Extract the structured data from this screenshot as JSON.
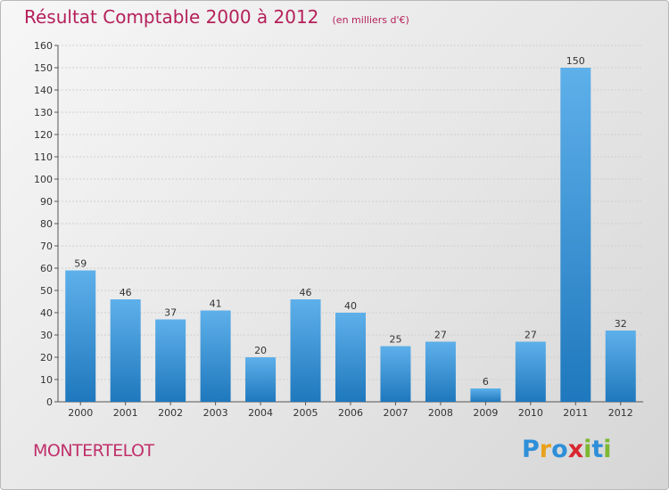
{
  "header": {
    "title": "Résultat Comptable 2000 à 2012",
    "subtitle": "(en milliers d'€)"
  },
  "footer": {
    "commune": "MONTERTELOT",
    "logo_text": "Proxiti",
    "logo_letters": [
      "P",
      "r",
      "o",
      "x",
      "i",
      "t",
      "i"
    ],
    "logo_colors": [
      "#2e8fd8",
      "#e8a11c",
      "#2e8fd8",
      "#d8272f",
      "#7cb832",
      "#2e8fd8",
      "#7cb832"
    ]
  },
  "colors": {
    "bar_light": "#5eb0ea",
    "bar_dark": "#1f78bd",
    "title": "#b5205a",
    "grid": "#cfcfcf"
  },
  "chart_data": {
    "type": "bar",
    "title": "Résultat Comptable 2000 à 2012",
    "subtitle": "(en milliers d'€)",
    "xlabel": "",
    "ylabel": "",
    "categories": [
      "2000",
      "2001",
      "2002",
      "2003",
      "2004",
      "2005",
      "2006",
      "2007",
      "2008",
      "2009",
      "2010",
      "2011",
      "2012"
    ],
    "values": [
      59,
      46,
      37,
      41,
      20,
      46,
      40,
      25,
      27,
      6,
      27,
      150,
      32
    ],
    "ylim": [
      0,
      160
    ],
    "yticks": [
      0,
      10,
      20,
      30,
      40,
      50,
      60,
      70,
      80,
      90,
      100,
      110,
      120,
      130,
      140,
      150,
      160
    ],
    "grid": true,
    "legend": "none"
  }
}
